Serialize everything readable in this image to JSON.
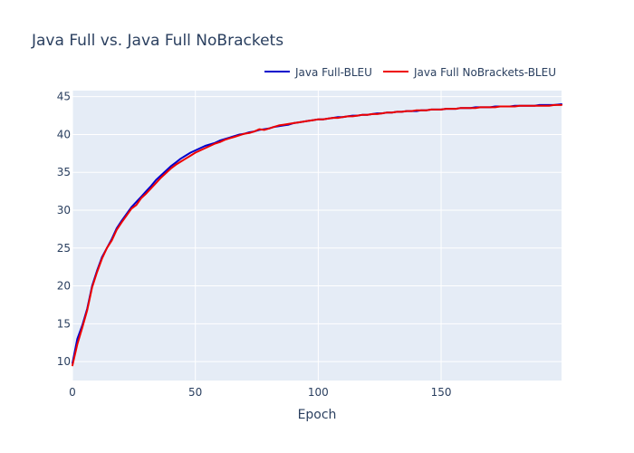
{
  "chart_data": {
    "type": "line",
    "title": "Java Full vs. Java Full NoBrackets",
    "xlabel": "Epoch",
    "ylabel": "",
    "xlim": [
      0,
      199
    ],
    "ylim": [
      7.5,
      45.8
    ],
    "xticks": [
      0,
      50,
      100,
      150
    ],
    "yticks": [
      10,
      15,
      20,
      25,
      30,
      35,
      40,
      45
    ],
    "grid": true,
    "legend": "top-right",
    "colors": {
      "plot_bg": "#e5ecf6",
      "grid": "#ffffff",
      "text": "#2a3f5f"
    },
    "series": [
      {
        "name": "Java Full-BLEU",
        "color": "#0000cc",
        "x": [
          0,
          2,
          4,
          6,
          8,
          10,
          12,
          14,
          16,
          18,
          20,
          22,
          24,
          26,
          28,
          30,
          32,
          34,
          36,
          38,
          40,
          42,
          44,
          46,
          48,
          50,
          52,
          54,
          56,
          58,
          60,
          62,
          64,
          66,
          68,
          70,
          72,
          74,
          76,
          78,
          80,
          82,
          84,
          86,
          88,
          90,
          92,
          94,
          96,
          98,
          100,
          102,
          104,
          106,
          108,
          110,
          112,
          114,
          116,
          118,
          120,
          122,
          124,
          126,
          128,
          130,
          132,
          134,
          136,
          138,
          140,
          142,
          144,
          146,
          148,
          150,
          152,
          154,
          156,
          158,
          160,
          162,
          164,
          166,
          168,
          170,
          172,
          174,
          176,
          178,
          180,
          182,
          184,
          186,
          188,
          190,
          192,
          194,
          196,
          199
        ],
        "values": [
          9.8,
          13.0,
          14.8,
          17.0,
          20.0,
          22.0,
          23.8,
          25.0,
          26.2,
          27.6,
          28.6,
          29.5,
          30.4,
          31.1,
          31.8,
          32.5,
          33.2,
          34.0,
          34.6,
          35.2,
          35.8,
          36.3,
          36.8,
          37.2,
          37.6,
          37.9,
          38.2,
          38.5,
          38.7,
          38.9,
          39.2,
          39.4,
          39.6,
          39.8,
          40.0,
          40.1,
          40.3,
          40.4,
          40.6,
          40.7,
          40.8,
          41.0,
          41.1,
          41.2,
          41.3,
          41.5,
          41.6,
          41.7,
          41.8,
          41.9,
          42.0,
          42.0,
          42.1,
          42.2,
          42.3,
          42.3,
          42.4,
          42.5,
          42.5,
          42.6,
          42.6,
          42.7,
          42.8,
          42.8,
          42.9,
          42.9,
          43.0,
          43.0,
          43.1,
          43.1,
          43.1,
          43.2,
          43.2,
          43.3,
          43.3,
          43.3,
          43.4,
          43.4,
          43.4,
          43.5,
          43.5,
          43.5,
          43.6,
          43.6,
          43.6,
          43.6,
          43.7,
          43.7,
          43.7,
          43.7,
          43.8,
          43.8,
          43.8,
          43.8,
          43.8,
          43.9,
          43.9,
          43.9,
          43.9,
          44.0
        ]
      },
      {
        "name": "Java Full NoBrackets-BLEU",
        "color": "#ee0000",
        "x": [
          0,
          2,
          4,
          6,
          8,
          10,
          12,
          14,
          16,
          18,
          20,
          22,
          24,
          26,
          28,
          30,
          32,
          34,
          36,
          38,
          40,
          42,
          44,
          46,
          48,
          50,
          52,
          54,
          56,
          58,
          60,
          62,
          64,
          66,
          68,
          70,
          72,
          74,
          76,
          78,
          80,
          82,
          84,
          86,
          88,
          90,
          92,
          94,
          96,
          98,
          100,
          102,
          104,
          106,
          108,
          110,
          112,
          114,
          116,
          118,
          120,
          122,
          124,
          126,
          128,
          130,
          132,
          134,
          136,
          138,
          140,
          142,
          144,
          146,
          148,
          150,
          152,
          154,
          156,
          158,
          160,
          162,
          164,
          166,
          168,
          170,
          172,
          174,
          176,
          178,
          180,
          182,
          184,
          186,
          188,
          190,
          192,
          194,
          196,
          199
        ],
        "values": [
          9.5,
          12.3,
          14.5,
          16.8,
          19.8,
          21.8,
          23.6,
          25.0,
          26.0,
          27.4,
          28.4,
          29.3,
          30.2,
          30.7,
          31.6,
          32.2,
          32.9,
          33.6,
          34.3,
          34.9,
          35.5,
          36.0,
          36.4,
          36.8,
          37.2,
          37.6,
          37.9,
          38.2,
          38.5,
          38.8,
          39.0,
          39.3,
          39.5,
          39.7,
          39.9,
          40.1,
          40.2,
          40.4,
          40.7,
          40.6,
          40.8,
          41.0,
          41.2,
          41.3,
          41.4,
          41.5,
          41.6,
          41.7,
          41.8,
          41.9,
          42.0,
          42.0,
          42.1,
          42.2,
          42.2,
          42.3,
          42.4,
          42.4,
          42.5,
          42.6,
          42.6,
          42.7,
          42.7,
          42.8,
          42.9,
          42.9,
          43.0,
          43.0,
          43.1,
          43.1,
          43.2,
          43.2,
          43.2,
          43.3,
          43.3,
          43.3,
          43.4,
          43.4,
          43.4,
          43.5,
          43.5,
          43.5,
          43.5,
          43.6,
          43.6,
          43.6,
          43.6,
          43.7,
          43.7,
          43.7,
          43.7,
          43.8,
          43.8,
          43.8,
          43.8,
          43.8,
          43.8,
          43.8,
          43.9,
          43.9
        ]
      }
    ]
  }
}
